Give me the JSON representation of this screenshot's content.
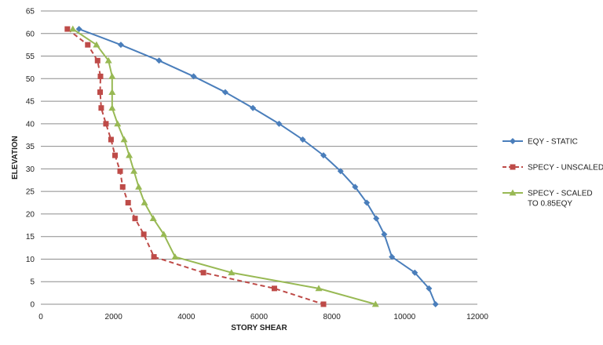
{
  "chart_data": {
    "type": "line",
    "xlabel": "STORY SHEAR",
    "ylabel": "ELEVATION",
    "xlim": [
      0,
      12000
    ],
    "ylim": [
      0,
      65
    ],
    "xticks": [
      0,
      2000,
      4000,
      6000,
      8000,
      10000,
      12000
    ],
    "yticks": [
      0,
      5,
      10,
      15,
      20,
      25,
      30,
      35,
      40,
      45,
      50,
      55,
      60,
      65
    ],
    "grid": "horizontal",
    "legend_position": "right",
    "series": [
      {
        "name": "EQY - STATIC",
        "color": "#4a7ebb",
        "dash": "solid",
        "marker": "diamond",
        "x": [
          1050,
          2200,
          3250,
          4200,
          5070,
          5830,
          6550,
          7200,
          7770,
          8240,
          8640,
          8960,
          9220,
          9440,
          9650,
          10280,
          10670,
          10850
        ],
        "y": [
          61,
          57.5,
          54,
          50.5,
          47,
          43.5,
          40,
          36.5,
          33,
          29.5,
          26,
          22.5,
          19,
          15.5,
          10.5,
          7,
          3.5,
          0
        ]
      },
      {
        "name": "SPECY - UNSCALED",
        "color": "#be4b48",
        "dash": "dashed",
        "marker": "square",
        "x": [
          730,
          1290,
          1560,
          1640,
          1630,
          1660,
          1790,
          1930,
          2040,
          2180,
          2250,
          2400,
          2590,
          2830,
          3110,
          4470,
          6420,
          7770
        ],
        "y": [
          61,
          57.5,
          54,
          50.5,
          47,
          43.5,
          40,
          36.5,
          33,
          29.5,
          26,
          22.5,
          19,
          15.5,
          10.5,
          7,
          3.5,
          0
        ]
      },
      {
        "name": "SPECY - SCALED TO 0.85EQY",
        "color": "#98b954",
        "dash": "solid",
        "marker": "triangle",
        "x": [
          880,
          1530,
          1860,
          1960,
          1960,
          1960,
          2110,
          2290,
          2430,
          2560,
          2690,
          2850,
          3090,
          3380,
          3690,
          5240,
          7640,
          9200
        ],
        "y": [
          61,
          57.5,
          54,
          50.5,
          47,
          43.5,
          40,
          36.5,
          33,
          29.5,
          26,
          22.5,
          19,
          15.5,
          10.5,
          7,
          3.5,
          0
        ]
      }
    ],
    "legend_entries": [
      {
        "lines": [
          "EQY - STATIC"
        ]
      },
      {
        "lines": [
          "SPECY - UNSCALED"
        ]
      },
      {
        "lines": [
          "SPECY - SCALED",
          "TO 0.85EQY"
        ]
      }
    ]
  }
}
